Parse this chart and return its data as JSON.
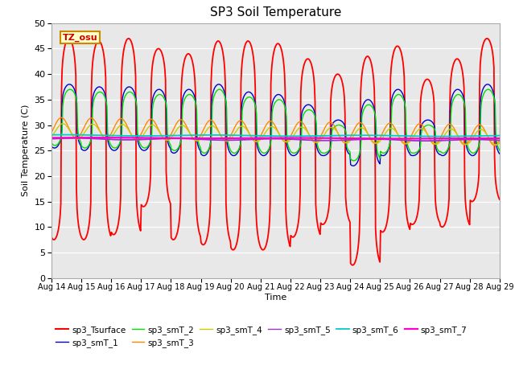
{
  "title": "SP3 Soil Temperature",
  "xlabel": "Time",
  "ylabel": "Soil Temperature (C)",
  "ylim": [
    0,
    50
  ],
  "bg_color": "#e8e8e8",
  "annotation_text": "TZ_osu",
  "annotation_bg": "#ffffcc",
  "annotation_border": "#cc8800",
  "x_tick_labels": [
    "Aug 14",
    "Aug 15",
    "Aug 16",
    "Aug 17",
    "Aug 18",
    "Aug 19",
    "Aug 20",
    "Aug 21",
    "Aug 22",
    "Aug 23",
    "Aug 24",
    "Aug 25",
    "Aug 26",
    "Aug 27",
    "Aug 28",
    "Aug 29"
  ],
  "series": [
    {
      "name": "sp3_Tsurface",
      "color": "#ff0000"
    },
    {
      "name": "sp3_smT_1",
      "color": "#0000cc"
    },
    {
      "name": "sp3_smT_2",
      "color": "#00dd00"
    },
    {
      "name": "sp3_smT_3",
      "color": "#ff8800"
    },
    {
      "name": "sp3_smT_4",
      "color": "#cccc00"
    },
    {
      "name": "sp3_smT_5",
      "color": "#9933cc"
    },
    {
      "name": "sp3_smT_6",
      "color": "#00cccc"
    },
    {
      "name": "sp3_smT_7",
      "color": "#ff00cc"
    }
  ],
  "surface_peak_values": [
    47,
    46.5,
    47,
    45,
    44,
    46.5,
    46.5,
    46,
    43,
    40,
    43.5,
    45.5,
    39,
    43,
    47
  ],
  "surface_trough_values": [
    7.5,
    7.5,
    8.5,
    14,
    7.5,
    6.5,
    5.5,
    5.5,
    8,
    10.5,
    2.5,
    9,
    10.5,
    10,
    15
  ],
  "smT1_peak_values": [
    38,
    37.5,
    37.5,
    37,
    37,
    38,
    36.5,
    36,
    34,
    31,
    35,
    37,
    31,
    37,
    38
  ],
  "smT1_trough_values": [
    25.5,
    25,
    25,
    25,
    24.5,
    24,
    24,
    24,
    24,
    24,
    22,
    24,
    24,
    24,
    24
  ],
  "smT2_peak_values": [
    37,
    36.5,
    36.5,
    36,
    36,
    37,
    35.5,
    35,
    33,
    30,
    34,
    36,
    30,
    36,
    37
  ],
  "smT2_trough_values": [
    26,
    25.5,
    25.5,
    25.5,
    25,
    24.5,
    24.5,
    24.5,
    24.5,
    24.5,
    23,
    24.5,
    24.5,
    24.5,
    24.5
  ],
  "smT3_base": 29.5,
  "smT3_trend": -0.1,
  "smT3_amp": 2.0,
  "smT4_base": 28.8,
  "smT4_trend": -0.08,
  "smT4_amp": 1.5,
  "smT5_base": 27.3,
  "smT5_trend": -0.02,
  "smT6_base": 28.0,
  "smT6_trend": -0.01,
  "smT7_base": 27.5,
  "smT7_trend": -0.01
}
